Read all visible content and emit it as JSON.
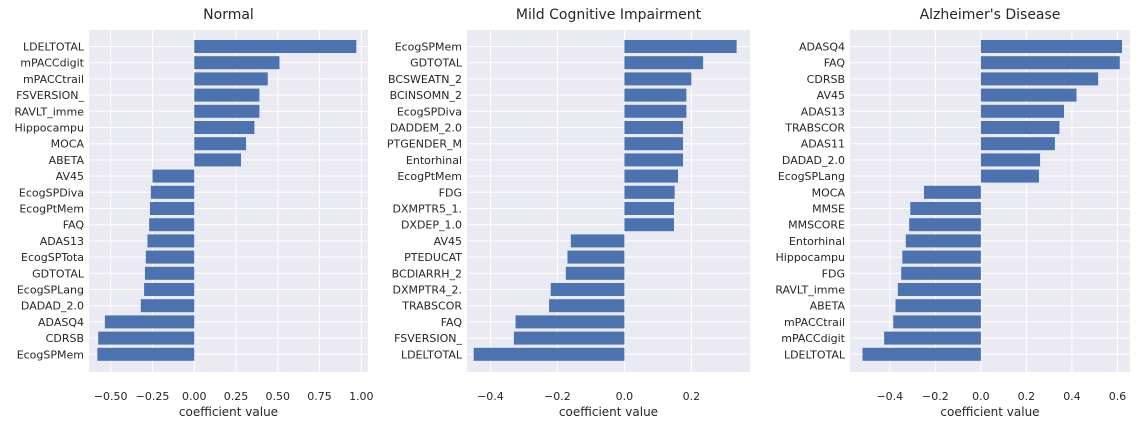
{
  "chart_data": [
    {
      "type": "bar",
      "orientation": "horizontal",
      "title": "Normal",
      "xlabel": "coefficient value",
      "ylabel": "",
      "xlim": [
        -0.63,
        1.04
      ],
      "xticks": [
        -0.5,
        -0.25,
        0.0,
        0.25,
        0.5,
        0.75,
        1.0
      ],
      "xtick_labels": [
        "−0.50",
        "−0.25",
        "0.00",
        "0.25",
        "0.50",
        "0.75",
        "1.00"
      ],
      "grid": true,
      "bar_color": "#4c72b0",
      "categories": [
        "LDELTOTAL",
        "mPACCdigit",
        "mPACCtrail",
        "FSVERSION_",
        "RAVLT_imme",
        "Hippocampu",
        "MOCA",
        "ABETA",
        "AV45",
        "EcogSPDiva",
        "EcogPtMem",
        "FAQ",
        "ADAS13",
        "EcogSPTota",
        "GDTOTAL",
        "EcogSPLang",
        "DADAD_2.0",
        "ADASQ4",
        "CDRSB",
        "EcogSPMem"
      ],
      "values": [
        0.97,
        0.51,
        0.44,
        0.39,
        0.39,
        0.36,
        0.31,
        0.28,
        -0.25,
        -0.26,
        -0.265,
        -0.27,
        -0.28,
        -0.29,
        -0.295,
        -0.3,
        -0.32,
        -0.535,
        -0.575,
        -0.58
      ]
    },
    {
      "type": "bar",
      "orientation": "horizontal",
      "title": "Mild Cognitive Impairment",
      "xlabel": "coefficient value",
      "ylabel": "",
      "xlim": [
        -0.47,
        0.375
      ],
      "xticks": [
        -0.4,
        -0.2,
        0.0,
        0.2
      ],
      "xtick_labels": [
        "−0.4",
        "−0.2",
        "0.0",
        "0.2"
      ],
      "grid": true,
      "bar_color": "#4c72b0",
      "categories": [
        "EcogSPMem",
        "GDTOTAL",
        "BCSWEATN_2",
        "BCINSOMN_2",
        "EcogSPDiva",
        "DADDEM_2.0",
        "PTGENDER_M",
        "Entorhinal",
        "EcogPtMem",
        "FDG",
        "DXMPTR5_1.",
        "DXDEP_1.0",
        "AV45",
        "PTEDUCAT",
        "BCDIARRH_2",
        "DXMPTR4_2.",
        "TRABSCOR",
        "FAQ",
        "FSVERSION_",
        "LDELTOTAL"
      ],
      "values": [
        0.335,
        0.235,
        0.2,
        0.185,
        0.185,
        0.175,
        0.175,
        0.175,
        0.16,
        0.15,
        0.148,
        0.148,
        -0.16,
        -0.17,
        -0.175,
        -0.22,
        -0.225,
        -0.325,
        -0.33,
        -0.45
      ]
    },
    {
      "type": "bar",
      "orientation": "horizontal",
      "title": "Alzheimer's Disease",
      "xlabel": "coefficient value",
      "ylabel": "",
      "xlim": [
        -0.575,
        0.655
      ],
      "xticks": [
        -0.4,
        -0.2,
        0.0,
        0.2,
        0.4,
        0.6
      ],
      "xtick_labels": [
        "−0.4",
        "−0.2",
        "0.0",
        "0.2",
        "0.4",
        "0.6"
      ],
      "grid": true,
      "bar_color": "#4c72b0",
      "categories": [
        "ADASQ4",
        "FAQ",
        "CDRSB",
        "AV45",
        "ADAS13",
        "TRABSCOR",
        "ADAS11",
        "DADAD_2.0",
        "EcogSPLang",
        "MOCA",
        "MMSE",
        "MMSCORE",
        "Entorhinal",
        "Hippocampu",
        "FDG",
        "RAVLT_imme",
        "ABETA",
        "mPACCtrail",
        "mPACCdigit",
        "LDELTOTAL"
      ],
      "values": [
        0.62,
        0.61,
        0.515,
        0.42,
        0.365,
        0.345,
        0.325,
        0.26,
        0.255,
        -0.25,
        -0.31,
        -0.315,
        -0.33,
        -0.345,
        -0.35,
        -0.365,
        -0.375,
        -0.385,
        -0.425,
        -0.52
      ]
    }
  ]
}
